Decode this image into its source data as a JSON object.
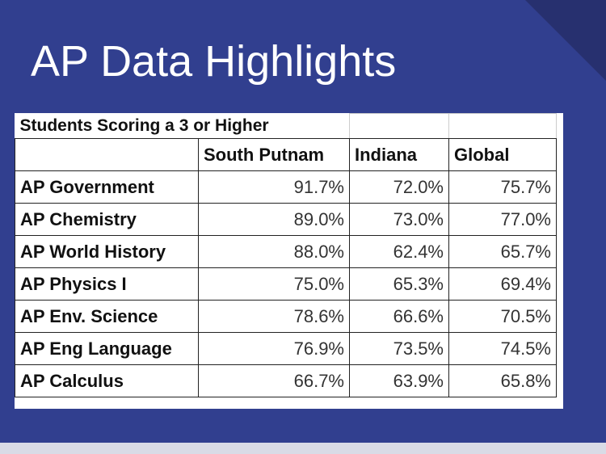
{
  "title": "AP Data Highlights",
  "table": {
    "caption": "Students Scoring a 3 or Higher",
    "columns": [
      "South Putnam",
      "Indiana",
      "Global"
    ],
    "rows": [
      [
        "AP Government",
        "91.7%",
        "72.0%",
        "75.7%"
      ],
      [
        "AP Chemistry",
        "89.0%",
        "73.0%",
        "77.0%"
      ],
      [
        "AP World History",
        "88.0%",
        "62.4%",
        "65.7%"
      ],
      [
        "AP Physics I",
        "75.0%",
        "65.3%",
        "69.4%"
      ],
      [
        "AP Env. Science",
        "78.6%",
        "66.6%",
        "70.5%"
      ],
      [
        "AP Eng Language",
        "76.9%",
        "73.5%",
        "74.5%"
      ],
      [
        "AP Calculus",
        "66.7%",
        "63.9%",
        "65.8%"
      ]
    ]
  }
}
